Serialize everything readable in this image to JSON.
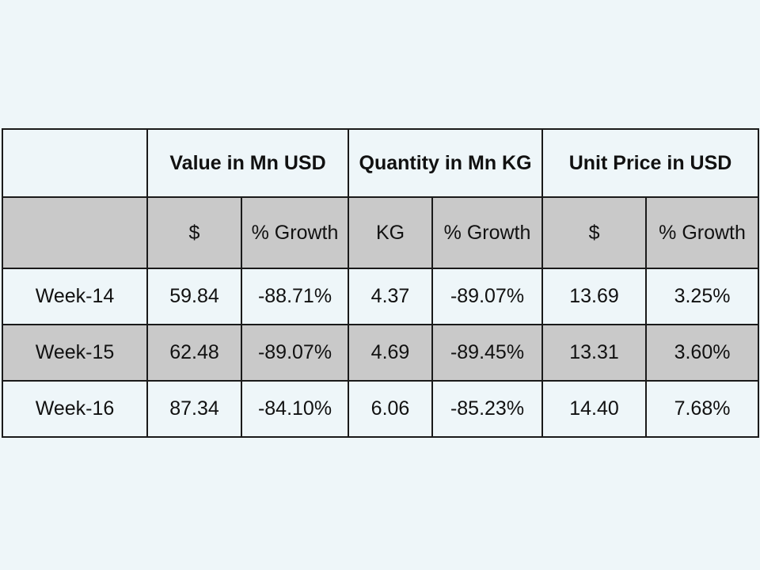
{
  "table": {
    "group_headers": [
      "",
      "Value in Mn USD",
      "Quantity in Mn KG",
      "Unit Price in USD"
    ],
    "sub_headers": [
      "",
      "$",
      "% Growth",
      "KG",
      "% Growth",
      "$",
      "% Growth"
    ],
    "rows": [
      [
        "Week-14",
        "59.84",
        "-88.71%",
        "4.37",
        "-89.07%",
        "13.69",
        "3.25%"
      ],
      [
        "Week-15",
        "62.48",
        "-89.07%",
        "4.69",
        "-89.45%",
        "13.31",
        "3.60%"
      ],
      [
        "Week-16",
        "87.34",
        "-84.10%",
        "6.06",
        "-85.23%",
        "14.40",
        "7.68%"
      ]
    ]
  },
  "colors": {
    "background": "#eef6f9",
    "shaded_row": "#c9c9c9",
    "border": "#1a1a1a"
  }
}
